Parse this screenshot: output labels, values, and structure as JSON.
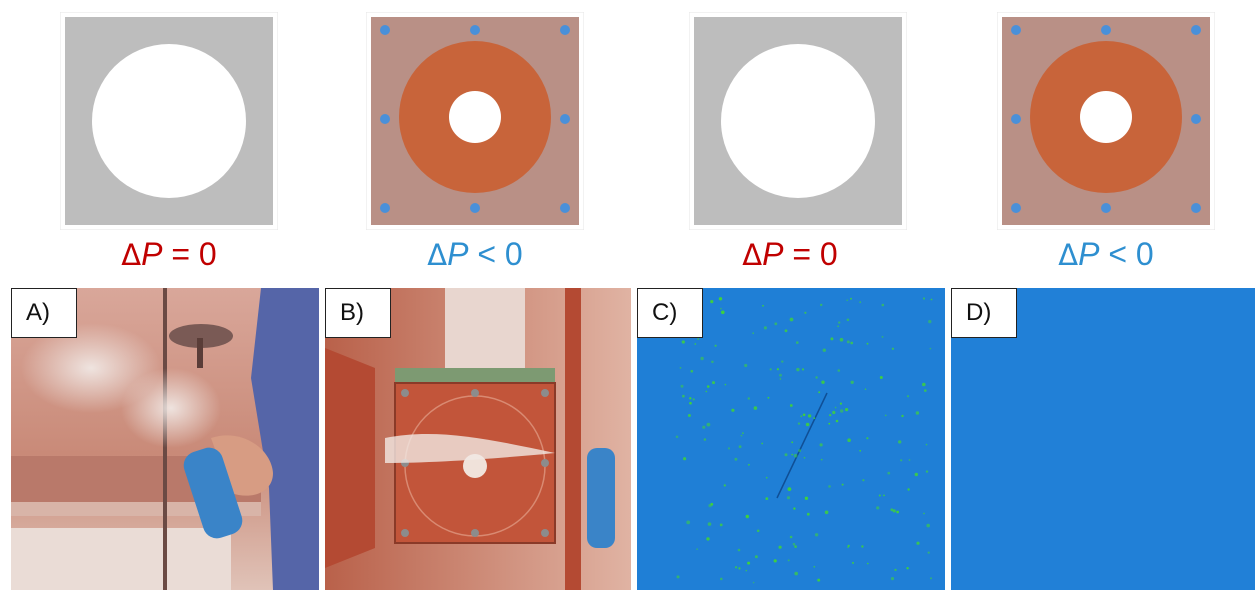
{
  "schematics": [
    {
      "condition_symbol": "Δ",
      "condition_var": "P",
      "condition_rel": " = 0",
      "color": "#c00000",
      "style": "open"
    },
    {
      "condition_symbol": "Δ",
      "condition_var": "P",
      "condition_rel": " < 0",
      "color": "#2e8fd0",
      "style": "gasket"
    },
    {
      "condition_symbol": "Δ",
      "condition_var": "P",
      "condition_rel": " = 0",
      "color": "#c00000",
      "style": "open"
    },
    {
      "condition_symbol": "Δ",
      "condition_var": "P",
      "condition_rel": " < 0",
      "color": "#2e8fd0",
      "style": "gasket"
    }
  ],
  "photos": [
    {
      "tag": "A)",
      "subject": "smoke plume, open aperture"
    },
    {
      "tag": "B)",
      "subject": "smoke drawn through gasket port"
    },
    {
      "tag": "C)",
      "subject": "fluorescent particles present"
    },
    {
      "tag": "D)",
      "subject": "no fluorescent particles"
    }
  ],
  "colors": {
    "plate_gray": "#bdbdbd",
    "gasket_orange": "#c8643a",
    "plate_tint": "#b99086",
    "bolt_blue": "#4a90d9",
    "microscope_blue": "#1f7fd6",
    "particle_green": "#3fd23a"
  }
}
